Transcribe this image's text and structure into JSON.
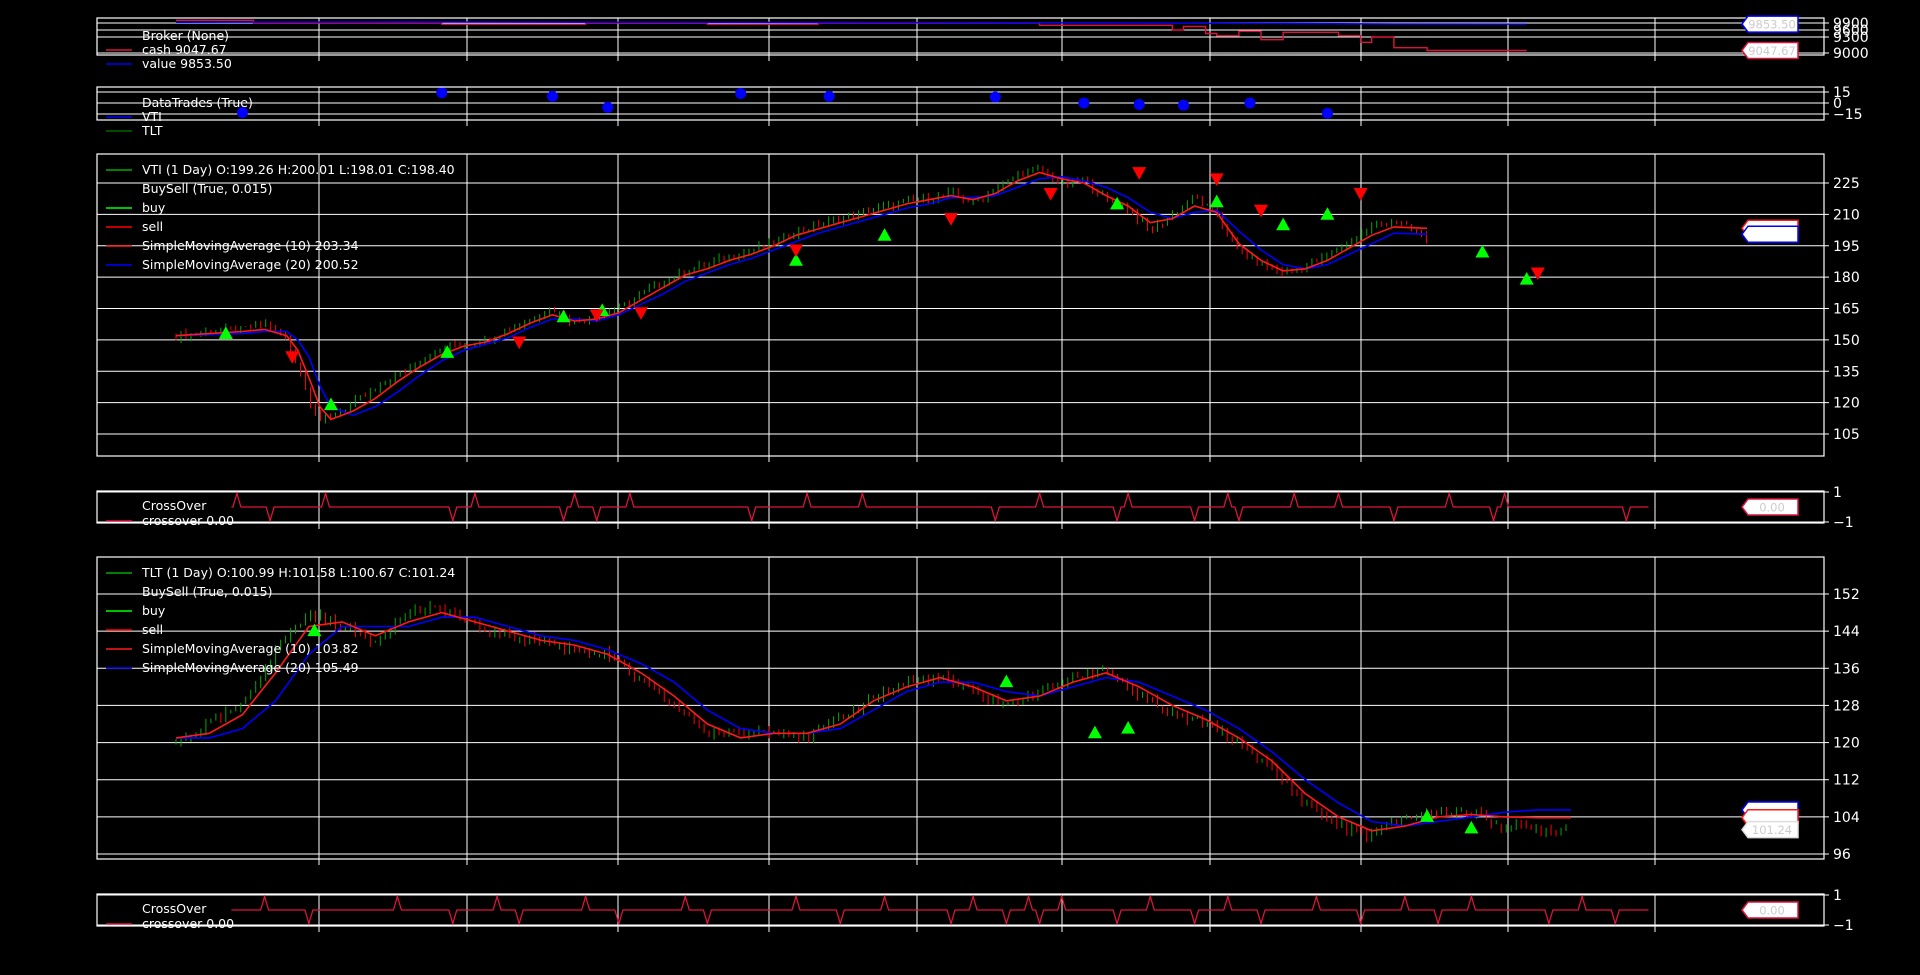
{
  "theme": {
    "background": "#000000",
    "grid": "#ffffff",
    "axis": "#ffffff",
    "text": "#ffffff",
    "up_candle": "#00aa00",
    "down_candle": "#ff0000",
    "sma10": "#ff1a1a",
    "sma20": "#0000ff",
    "buy_marker": "#00ff00",
    "sell_marker": "#ff0000",
    "crossover": "#dc143c",
    "cash_line": "#dc143c",
    "value_line": "#0000ff",
    "trades_marker": "#0000ff"
  },
  "chart_data": [
    {
      "id": "broker",
      "type": "line",
      "legend": [
        {
          "text": "Broker (None)",
          "color": ""
        },
        {
          "text": "cash 9047.67",
          "color": "#dc143c"
        },
        {
          "text": "value 9853.50",
          "color": "#0000ff"
        }
      ],
      "yticks": [
        "9900",
        "9600",
        "9300",
        "9000"
      ],
      "ytick_values": [
        9900,
        9600,
        9300,
        9000
      ],
      "ylim": [
        8900,
        9950
      ],
      "value_tags": [
        {
          "text": "9853.50",
          "value": 9853.5,
          "color": "#0000ff"
        },
        {
          "text": "9047.67",
          "value": 9047.67,
          "color": "#dc143c"
        }
      ],
      "series": [
        {
          "name": "cash",
          "x": [
            0,
            7,
            7,
            24,
            24,
            37,
            37,
            48,
            48,
            58,
            58,
            78,
            78,
            90,
            90,
            91,
            91,
            93,
            93,
            94,
            94,
            96,
            96,
            98,
            98,
            100,
            100,
            105,
            105,
            107,
            107,
            108,
            108,
            110,
            110,
            113,
            113,
            122
          ],
          "values": [
            9980,
            9980,
            9900,
            9900,
            9850,
            9850,
            9900,
            9900,
            9850,
            9850,
            9900,
            9900,
            9800,
            9800,
            9600,
            9600,
            9750,
            9750,
            9450,
            9450,
            9350,
            9350,
            9550,
            9550,
            9250,
            9250,
            9500,
            9500,
            9350,
            9350,
            9200,
            9200,
            9300,
            9300,
            9100,
            9100,
            9047.67,
            9047.67
          ]
        },
        {
          "name": "value",
          "x": [
            0,
            20,
            40,
            60,
            80,
            100,
            110,
            122
          ],
          "values": [
            9920,
            9930,
            9920,
            9915,
            9905,
            9880,
            9860,
            9853.5
          ]
        }
      ]
    },
    {
      "id": "trades",
      "type": "scatter",
      "legend": [
        {
          "text": "DataTrades (True)",
          "color": ""
        },
        {
          "text": "VTI",
          "color": "#0000ff"
        },
        {
          "text": "TLT",
          "color": "#006400"
        }
      ],
      "yticks": [
        "15",
        "0",
        "−15"
      ],
      "ytick_values": [
        15,
        0,
        -15
      ],
      "ylim": [
        -20,
        20
      ],
      "points": [
        [
          6,
          -13
        ],
        [
          24,
          14
        ],
        [
          34,
          9
        ],
        [
          39,
          -6
        ],
        [
          51,
          13
        ],
        [
          59,
          9
        ],
        [
          74,
          8
        ],
        [
          82,
          0
        ],
        [
          87,
          -2
        ],
        [
          91,
          -3
        ],
        [
          97,
          0
        ],
        [
          104,
          -14
        ]
      ]
    },
    {
      "id": "vti",
      "type": "line",
      "legend": [
        {
          "text": "VTI (1 Day) O:199.26 H:200.01 L:198.01 C:198.40",
          "color": "#00aa00"
        },
        {
          "text": "BuySell (True, 0.015)",
          "color": ""
        },
        {
          "text": "buy",
          "color": "#00ff00"
        },
        {
          "text": "sell",
          "color": "#ff0000"
        },
        {
          "text": "SimpleMovingAverage (10) 203.34",
          "color": "#ff1a1a"
        },
        {
          "text": "SimpleMovingAverage (20) 200.52",
          "color": "#0000ff"
        }
      ],
      "yticks": [
        "225",
        "210",
        "195",
        "180",
        "165",
        "150",
        "135",
        "120",
        "105"
      ],
      "ytick_values": [
        225,
        210,
        195,
        180,
        165,
        150,
        135,
        120,
        105
      ],
      "ylim": [
        95,
        238
      ],
      "value_tags": [
        {
          "text": "",
          "value": 203.34,
          "color": "#ff1a1a"
        },
        {
          "text": "",
          "value": 200.52,
          "color": "#0000ff"
        }
      ],
      "x": [
        0,
        3,
        6,
        8,
        10,
        11,
        12,
        13,
        14,
        16,
        18,
        20,
        22,
        24,
        26,
        28,
        30,
        32,
        34,
        36,
        38,
        40,
        42,
        44,
        46,
        48,
        50,
        52,
        54,
        56,
        58,
        60,
        62,
        64,
        66,
        68,
        70,
        72,
        74,
        76,
        78,
        80,
        82,
        84,
        86,
        88,
        90,
        92,
        94,
        96,
        98,
        100,
        102,
        104,
        106,
        108,
        110,
        113
      ],
      "close": [
        152,
        154,
        155,
        158,
        150,
        138,
        122,
        112,
        113,
        120,
        126,
        133,
        140,
        146,
        148,
        150,
        155,
        160,
        165,
        158,
        162,
        165,
        172,
        178,
        183,
        186,
        190,
        193,
        196,
        202,
        205,
        208,
        211,
        214,
        216,
        218,
        220,
        216,
        222,
        229,
        232,
        224,
        227,
        217,
        213,
        202,
        210,
        218,
        210,
        192,
        186,
        182,
        185,
        190,
        197,
        204,
        207,
        198.4
      ],
      "sma10": [
        152,
        153,
        154,
        155,
        152,
        145,
        132,
        118,
        112,
        116,
        122,
        130,
        137,
        143,
        147,
        149,
        153,
        158,
        162,
        159,
        160,
        163,
        169,
        175,
        181,
        184,
        188,
        191,
        195,
        200,
        203,
        206,
        209,
        212,
        215,
        217,
        219,
        217,
        220,
        226,
        230,
        227,
        225,
        219,
        214,
        206,
        208,
        214,
        211,
        196,
        188,
        183,
        184,
        188,
        194,
        200,
        204,
        203.34
      ],
      "sma20": [
        152,
        152.5,
        153,
        154,
        154,
        150,
        142,
        128,
        118,
        114,
        118,
        125,
        133,
        140,
        145,
        148,
        151,
        156,
        160,
        160,
        159,
        162,
        167,
        172,
        178,
        182,
        186,
        189,
        193,
        197,
        201,
        204,
        207,
        210,
        213,
        215,
        218,
        218,
        219,
        223,
        227,
        228,
        226,
        223,
        218,
        211,
        208,
        211,
        212,
        202,
        193,
        186,
        184,
        186,
        191,
        196,
        201,
        200.52
      ],
      "buy": [
        [
          4.5,
          155
        ],
        [
          14,
          121
        ],
        [
          24.5,
          146
        ],
        [
          35,
          163
        ],
        [
          38.5,
          166
        ],
        [
          56,
          190
        ],
        [
          64,
          202
        ],
        [
          85,
          217
        ],
        [
          94,
          218
        ],
        [
          100,
          207
        ],
        [
          104,
          212
        ],
        [
          118,
          194
        ],
        [
          122,
          181
        ]
      ],
      "sell": [
        [
          10.5,
          140
        ],
        [
          31,
          147
        ],
        [
          38,
          160
        ],
        [
          42,
          161
        ],
        [
          56,
          191
        ],
        [
          70,
          206
        ],
        [
          79,
          218
        ],
        [
          87,
          228
        ],
        [
          94,
          225
        ],
        [
          98,
          210
        ],
        [
          107,
          218
        ],
        [
          123,
          180
        ]
      ]
    },
    {
      "id": "vti_crossover",
      "type": "line",
      "legend": [
        {
          "text": "CrossOver",
          "color": ""
        },
        {
          "text": "crossover 0.00",
          "color": "#dc143c"
        }
      ],
      "yticks": [
        "1",
        "−1"
      ],
      "ytick_values": [
        1,
        -1
      ],
      "ylim": [
        -1.1,
        1.1
      ],
      "value_tags": [
        {
          "text": "0.00",
          "value": 0,
          "color": "#dc143c"
        }
      ],
      "pulses": [
        [
          5.5,
          1
        ],
        [
          8.5,
          -1
        ],
        [
          13.5,
          1
        ],
        [
          25,
          -1
        ],
        [
          27,
          1
        ],
        [
          35,
          -1
        ],
        [
          36,
          1
        ],
        [
          38,
          -1
        ],
        [
          41,
          1
        ],
        [
          52,
          -1
        ],
        [
          57,
          1
        ],
        [
          62,
          1
        ],
        [
          74,
          -1
        ],
        [
          78,
          1
        ],
        [
          85,
          -1
        ],
        [
          86,
          1
        ],
        [
          92,
          -1
        ],
        [
          95,
          1
        ],
        [
          96,
          -1
        ],
        [
          101,
          1
        ],
        [
          105,
          1
        ],
        [
          110,
          -1
        ],
        [
          115,
          1
        ],
        [
          119,
          -1
        ],
        [
          120,
          1
        ],
        [
          131,
          -1
        ]
      ]
    },
    {
      "id": "tlt",
      "type": "line",
      "legend": [
        {
          "text": "TLT (1 Day) O:100.99 H:101.58 L:100.67 C:101.24",
          "color": "#00aa00"
        },
        {
          "text": "BuySell (True, 0.015)",
          "color": ""
        },
        {
          "text": "buy",
          "color": "#00ff00"
        },
        {
          "text": "sell",
          "color": "#ff0000"
        },
        {
          "text": "SimpleMovingAverage (10) 103.82",
          "color": "#ff1a1a"
        },
        {
          "text": "SimpleMovingAverage (20) 105.49",
          "color": "#0000ff"
        }
      ],
      "yticks": [
        "152",
        "144",
        "136",
        "128",
        "120",
        "112",
        "104",
        "96"
      ],
      "ytick_values": [
        152,
        144,
        136,
        128,
        120,
        112,
        104,
        96
      ],
      "ylim": [
        95,
        157
      ],
      "value_tags": [
        {
          "text": "",
          "value": 105.49,
          "color": "#0000ff"
        },
        {
          "text": "",
          "value": 103.82,
          "color": "#ff1a1a"
        },
        {
          "text": "101.24",
          "value": 101.24,
          "color": "#dddddd"
        }
      ],
      "x": [
        0,
        3,
        6,
        9,
        12,
        15,
        18,
        21,
        24,
        27,
        30,
        33,
        36,
        39,
        42,
        45,
        48,
        51,
        54,
        57,
        60,
        63,
        66,
        69,
        72,
        75,
        78,
        81,
        84,
        87,
        90,
        93,
        96,
        99,
        102,
        105,
        108,
        111,
        114,
        117,
        120,
        123,
        126
      ],
      "close": [
        120,
        124,
        128,
        140,
        148,
        145,
        142,
        148,
        149,
        145,
        143,
        142,
        140,
        139,
        133,
        128,
        122,
        122,
        123,
        121,
        125,
        130,
        133,
        134,
        131,
        128,
        131,
        134,
        136,
        130,
        126,
        124,
        120,
        114,
        107,
        102,
        100,
        104,
        105,
        105,
        102,
        101.24,
        101.24
      ],
      "sma10": [
        121,
        122,
        126,
        135,
        145,
        146,
        143,
        146,
        148,
        146,
        144,
        142,
        141,
        139,
        135,
        130,
        124,
        121,
        122,
        122,
        124,
        129,
        132,
        134,
        132,
        129,
        130,
        133,
        135,
        132,
        128,
        125,
        121,
        116,
        109,
        104,
        101,
        102,
        104,
        104.5,
        104,
        103.82,
        103.82
      ],
      "sma20": [
        121,
        121,
        123,
        129,
        139,
        145,
        145,
        145,
        147,
        147,
        145,
        143,
        142,
        140,
        137,
        133,
        127,
        123,
        122,
        122,
        123,
        127,
        131,
        133,
        133,
        131,
        130,
        132,
        134,
        133,
        130,
        127,
        123,
        118,
        112,
        107,
        103,
        102,
        103,
        104,
        105,
        105.49,
        105.49
      ],
      "buy": [
        [
          12.5,
          145
        ],
        [
          75,
          134
        ],
        [
          83,
          123
        ],
        [
          86,
          124
        ],
        [
          113,
          105
        ],
        [
          117,
          102.5
        ]
      ],
      "sell": []
    },
    {
      "id": "tlt_crossover",
      "type": "line",
      "legend": [
        {
          "text": "CrossOver",
          "color": ""
        },
        {
          "text": "crossover 0.00",
          "color": "#dc143c"
        }
      ],
      "yticks": [
        "1",
        "−1"
      ],
      "ytick_values": [
        1,
        -1
      ],
      "ylim": [
        -1.1,
        1.1
      ],
      "value_tags": [
        {
          "text": "0.00",
          "value": 0,
          "color": "#dc143c"
        }
      ],
      "pulses": [
        [
          8,
          1
        ],
        [
          12,
          -1
        ],
        [
          20,
          1
        ],
        [
          25,
          -1
        ],
        [
          29,
          1
        ],
        [
          31,
          -1
        ],
        [
          37,
          1
        ],
        [
          40,
          -1
        ],
        [
          46,
          1
        ],
        [
          48,
          -1
        ],
        [
          56,
          1
        ],
        [
          60,
          -1
        ],
        [
          64,
          1
        ],
        [
          70,
          -1
        ],
        [
          72,
          1
        ],
        [
          75,
          -1
        ],
        [
          77,
          1
        ],
        [
          78,
          -1
        ],
        [
          80,
          1
        ],
        [
          85,
          -1
        ],
        [
          88,
          1
        ],
        [
          92,
          -1
        ],
        [
          95,
          1
        ],
        [
          98,
          -1
        ],
        [
          103,
          1
        ],
        [
          107,
          -1
        ],
        [
          111,
          1
        ],
        [
          114,
          -1
        ],
        [
          117,
          1
        ],
        [
          124,
          -1
        ],
        [
          127,
          1
        ],
        [
          130,
          -1
        ]
      ]
    }
  ]
}
